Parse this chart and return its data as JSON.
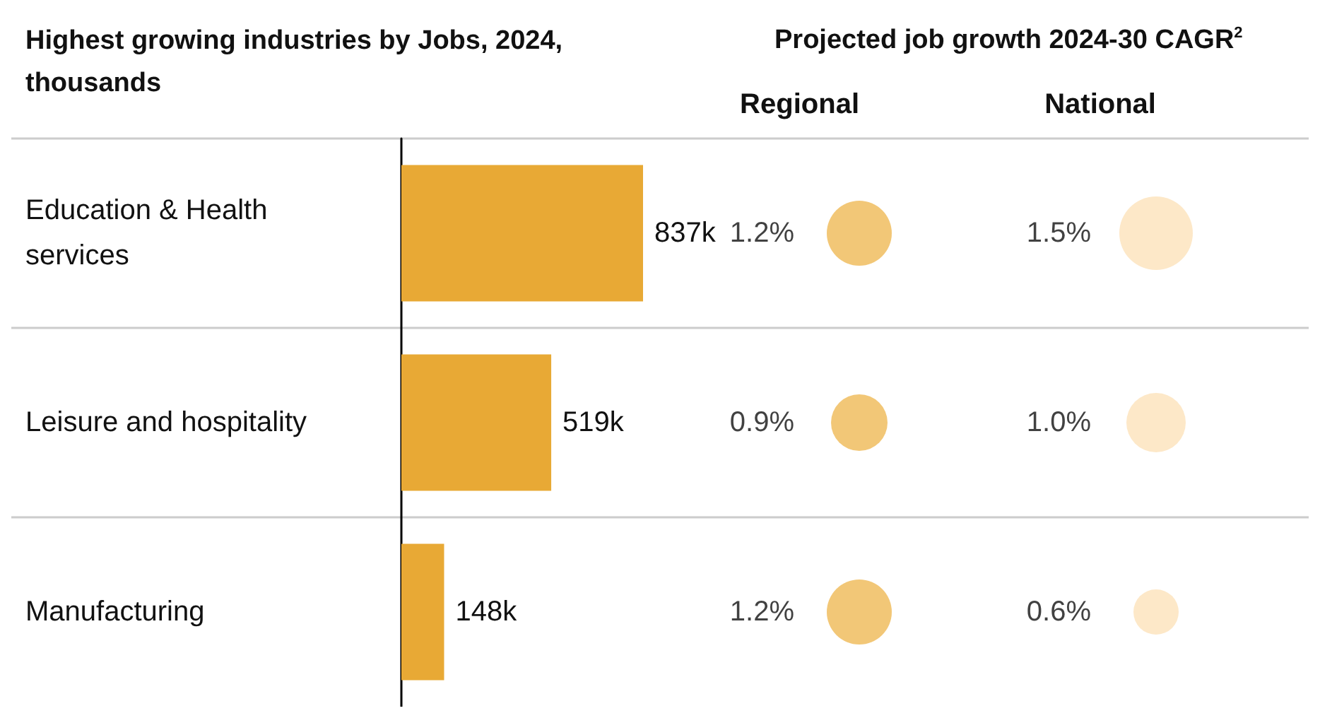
{
  "chart_data": [
    {
      "type": "bar",
      "orientation": "horizontal",
      "title": "Highest growing industries by Jobs, 2024, thousands",
      "categories": [
        "Education & Health services",
        "Leisure and hospitality",
        "Manufacturing"
      ],
      "values": [
        837,
        519,
        148
      ],
      "value_labels": [
        "837k",
        "519k",
        "148k"
      ],
      "color": "#e8a935"
    },
    {
      "type": "other",
      "title": "Projected job growth 2024-30 CAGR$^{2}$",
      "categories": [
        "Regional",
        "National"
      ],
      "series": [
        {
          "colors": [
            "#f2c777",
            "#fde8c8"
          ],
          "values": [
            1.2,
            1.5
          ],
          "value_labels": [
            "1.2%",
            "1.5%"
          ]
        },
        {
          "colors": [
            "#f2c777",
            "#fde8c8"
          ],
          "values": [
            0.9,
            1.0
          ],
          "value_labels": [
            "0.9%",
            "1.0%"
          ]
        },
        {
          "colors": [
            "#f2c777",
            "#fde8c8"
          ],
          "values": [
            1.2,
            0.6
          ],
          "value_labels": [
            "1.2%",
            "0.6%"
          ]
        }
      ]
    }
  ]
}
